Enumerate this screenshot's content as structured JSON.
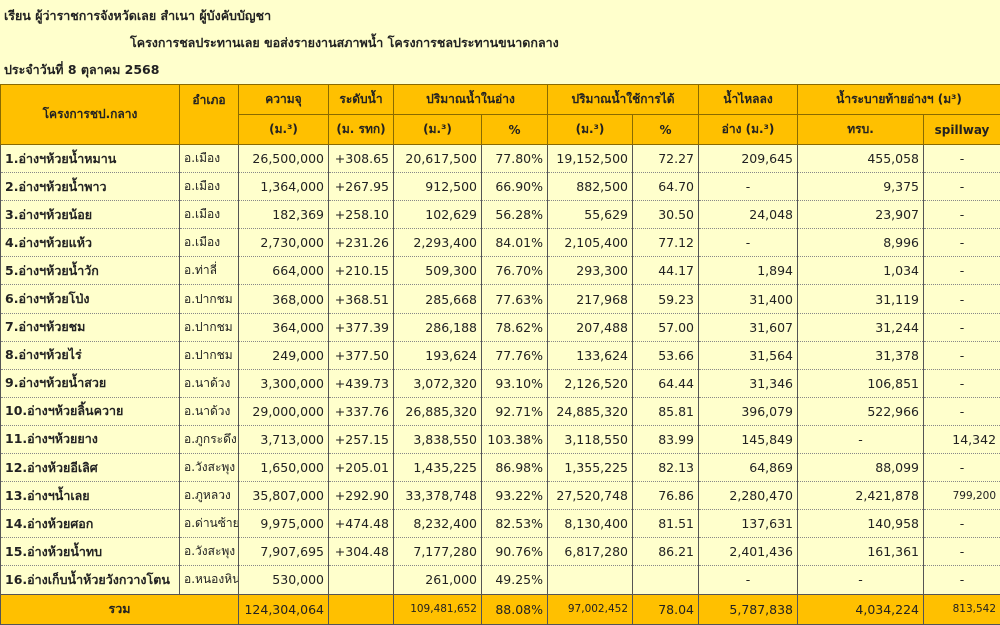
{
  "header": {
    "to_line": "เรียน  ผู้ว่าราชการจังหวัดเลย   สำเนา  ผู้บังคับบัญชา",
    "subject_line": "โครงการชลประทานเลย  ขอส่งรายงานสภาพน้ำ โครงการชลประทานขนาดกลาง",
    "date_line": "ประจำวันที่   8 ตุลาคม 2568"
  },
  "columns": {
    "project": "โครงการชป.กลาง",
    "district": "อำเภอ",
    "capacity": "ความจุ",
    "capacity_unit": "(ม.³)",
    "level": "ระดับน้ำ",
    "level_unit": "(ม. รทก)",
    "storage": "ปริมาณน้ำในอ่าง",
    "storage_unit": "(ม.³)",
    "storage_pct": "%",
    "usable": "ปริมาณน้ำใช้การได้",
    "usable_unit": "(ม.³)",
    "usable_pct": "%",
    "inflow": "น้ำไหลลง",
    "inflow_unit": "อ่าง (ม.³)",
    "release": "น้ำระบายท้ายอ่างฯ (ม³)",
    "release_rid": "ทรบ.",
    "release_spillway": "spillway"
  },
  "rows": [
    [
      "1.อ่างฯห้วยน้ำหมาน",
      "อ.เมือง",
      "26,500,000",
      "+308.65",
      "20,617,500",
      "77.80%",
      "19,152,500",
      "72.27",
      "209,645",
      "455,058",
      "-"
    ],
    [
      "2.อ่างฯห้วยน้ำพาว",
      "อ.เมือง",
      "1,364,000",
      "+267.95",
      "912,500",
      "66.90%",
      "882,500",
      "64.70",
      "-",
      "9,375",
      "-"
    ],
    [
      "3.อ่างฯห้วยน้อย",
      "อ.เมือง",
      "182,369",
      "+258.10",
      "102,629",
      "56.28%",
      "55,629",
      "30.50",
      "24,048",
      "23,907",
      "-"
    ],
    [
      "4.อ่างฯห้วยแห้ว",
      "อ.เมือง",
      "2,730,000",
      "+231.26",
      "2,293,400",
      "84.01%",
      "2,105,400",
      "77.12",
      "-",
      "8,996",
      "-"
    ],
    [
      "5.อ่างฯห้วยน้ำวัก",
      "อ.ท่าลี่",
      "664,000",
      "+210.15",
      "509,300",
      "76.70%",
      "293,300",
      "44.17",
      "1,894",
      "1,034",
      "-"
    ],
    [
      "6.อ่างฯห้วยโป่ง",
      "อ.ปากชม",
      "368,000",
      "+368.51",
      "285,668",
      "77.63%",
      "217,968",
      "59.23",
      "31,400",
      "31,119",
      "-"
    ],
    [
      "7.อ่างฯห้วยชม",
      "อ.ปากชม",
      "364,000",
      "+377.39",
      "286,188",
      "78.62%",
      "207,488",
      "57.00",
      "31,607",
      "31,244",
      "-"
    ],
    [
      "8.อ่างฯห้วยไร่",
      "อ.ปากชม",
      "249,000",
      "+377.50",
      "193,624",
      "77.76%",
      "133,624",
      "53.66",
      "31,564",
      "31,378",
      "-"
    ],
    [
      "9.อ่างฯห้วยน้ำสวย",
      "อ.นาด้วง",
      "3,300,000",
      "+439.73",
      "3,072,320",
      "93.10%",
      "2,126,520",
      "64.44",
      "31,346",
      "106,851",
      "-"
    ],
    [
      "10.อ่างฯห้วยลิ้นควาย",
      "อ.นาด้วง",
      "29,000,000",
      "+337.76",
      "26,885,320",
      "92.71%",
      "24,885,320",
      "85.81",
      "396,079",
      "522,966",
      "-"
    ],
    [
      "11.อ่างฯห้วยยาง",
      "อ.ภูกระดึง",
      "3,713,000",
      "+257.15",
      "3,838,550",
      "103.38%",
      "3,118,550",
      "83.99",
      "145,849",
      "-",
      "14,342"
    ],
    [
      "12.อ่างห้วยอีเลิศ",
      "อ.วังสะพุง",
      "1,650,000",
      "+205.01",
      "1,435,225",
      "86.98%",
      "1,355,225",
      "82.13",
      "64,869",
      "88,099",
      "-"
    ],
    [
      "13.อ่างฯน้ำเลย",
      "อ.ภูหลวง",
      "35,807,000",
      "+292.90",
      "33,378,748",
      "93.22%",
      "27,520,748",
      "76.86",
      "2,280,470",
      "2,421,878",
      "799,200"
    ],
    [
      "14.อ่างห้วยศอก",
      "อ.ด่านซ้าย",
      "9,975,000",
      "+474.48",
      "8,232,400",
      "82.53%",
      "8,130,400",
      "81.51",
      "137,631",
      "140,958",
      "-"
    ],
    [
      "15.อ่างห้วยน้ำทบ",
      "อ.วังสะพุง",
      "7,907,695",
      "+304.48",
      "7,177,280",
      "90.76%",
      "6,817,280",
      "86.21",
      "2,401,436",
      "161,361",
      "-"
    ],
    [
      "16.อ่างเก็บน้ำห้วยวังกวางโตน",
      "อ.หนองหิน",
      "530,000",
      "",
      "261,000",
      "49.25%",
      "",
      "",
      "-",
      "-",
      "-"
    ]
  ],
  "total": {
    "label": "รวม",
    "capacity": "124,304,064",
    "level": "",
    "storage": "109,481,652",
    "storage_pct": "88.08%",
    "usable": "97,002,452",
    "usable_pct": "78.04",
    "inflow": "5,787,838",
    "release_rid": "4,034,224",
    "release_spillway": "813,542"
  },
  "colors": {
    "background": "#ffffcc",
    "header": "#ffc000"
  }
}
